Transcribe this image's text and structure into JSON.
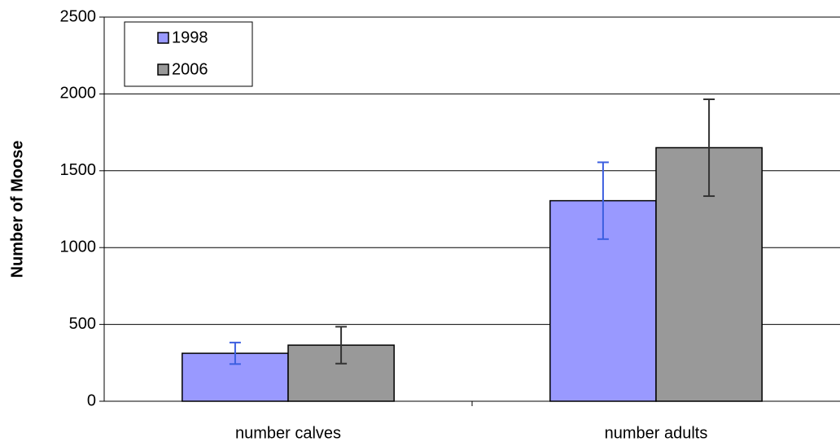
{
  "chart_data": {
    "type": "bar",
    "ylabel": "Number of Moose",
    "categories": [
      "number calves",
      "number adults"
    ],
    "series": [
      {
        "name": "1998",
        "color": "#9999ff",
        "error_color": "#3c5fe0",
        "values": [
          312,
          1305
        ],
        "errors": [
          70,
          250
        ]
      },
      {
        "name": "2006",
        "color": "#999999",
        "error_color": "#333333",
        "values": [
          365,
          1650
        ],
        "errors": [
          120,
          315
        ]
      }
    ],
    "ylim": [
      0,
      2500
    ],
    "yticks": [
      0,
      500,
      1000,
      1500,
      2000,
      2500
    ],
    "grid": true,
    "legend": "top-left"
  }
}
